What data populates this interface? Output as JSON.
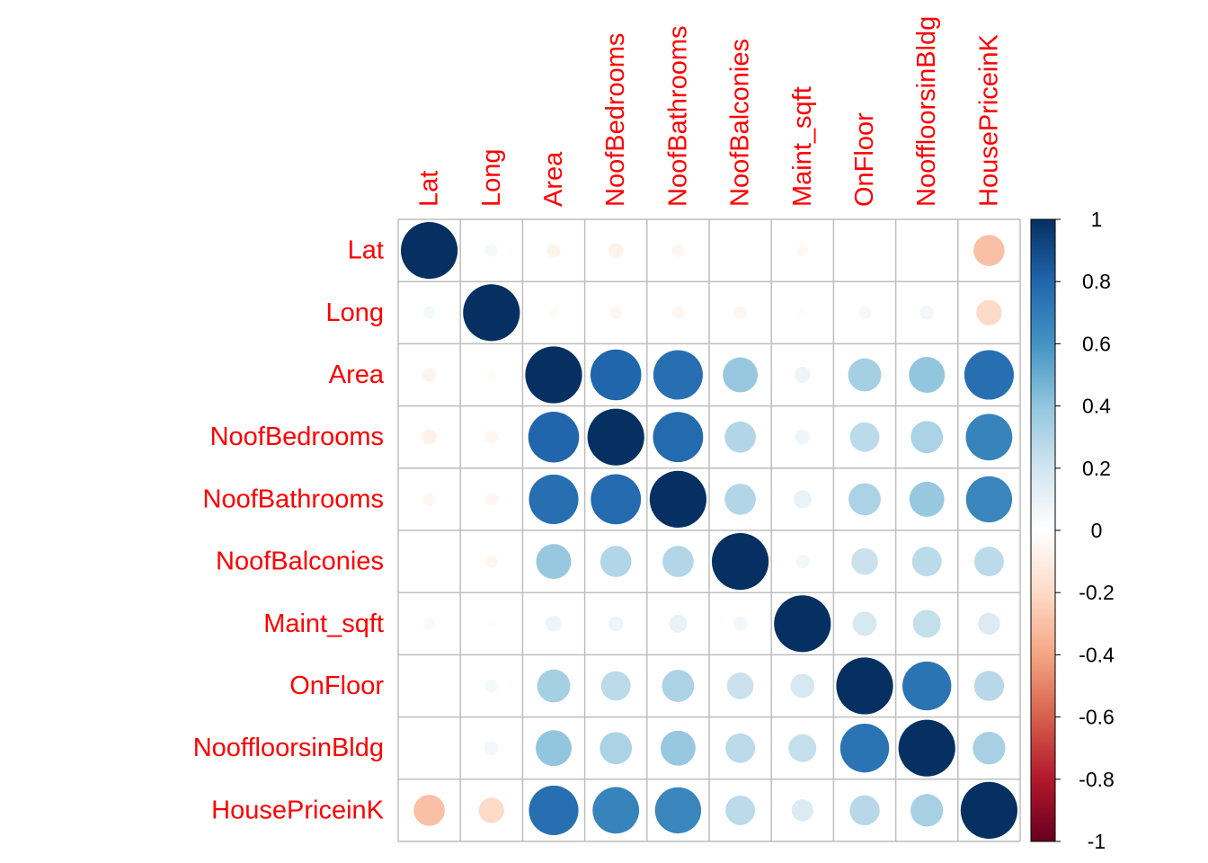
{
  "chart_data": {
    "type": "heatmap",
    "variables": [
      "Lat",
      "Long",
      "Area",
      "NoofBedrooms",
      "NoofBathrooms",
      "NoofBalconies",
      "Maint_sqft",
      "OnFloor",
      "NooffloorsinBldg",
      "HousePriceinK"
    ],
    "matrix": [
      [
        1,
        0.05,
        -0.06,
        -0.07,
        -0.05,
        0,
        -0.04,
        0,
        0,
        -0.3
      ],
      [
        0.05,
        1,
        -0.03,
        -0.05,
        -0.05,
        -0.05,
        -0.02,
        0.05,
        0.06,
        -0.2
      ],
      [
        -0.06,
        -0.03,
        1,
        0.8,
        0.76,
        0.38,
        0.08,
        0.34,
        0.4,
        0.76
      ],
      [
        -0.07,
        -0.05,
        0.8,
        1,
        0.78,
        0.3,
        0.07,
        0.27,
        0.32,
        0.67
      ],
      [
        -0.05,
        -0.05,
        0.76,
        0.78,
        1,
        0.3,
        0.1,
        0.32,
        0.38,
        0.66
      ],
      [
        0,
        -0.05,
        0.38,
        0.3,
        0.3,
        1,
        0.06,
        0.22,
        0.27,
        0.27
      ],
      [
        -0.04,
        -0.02,
        0.08,
        0.07,
        0.1,
        0.06,
        1,
        0.18,
        0.24,
        0.15
      ],
      [
        0,
        0.05,
        0.34,
        0.27,
        0.32,
        0.22,
        0.18,
        1,
        0.74,
        0.28
      ],
      [
        0,
        0.06,
        0.4,
        0.32,
        0.38,
        0.27,
        0.24,
        0.74,
        1,
        0.33
      ],
      [
        -0.3,
        -0.2,
        0.76,
        0.67,
        0.66,
        0.27,
        0.15,
        0.28,
        0.33,
        1
      ]
    ],
    "colorbar": {
      "range": [
        -1,
        1
      ],
      "ticks": [
        "1",
        "0.8",
        "0.6",
        "0.4",
        "0.2",
        "0",
        "-0.2",
        "-0.4",
        "-0.6",
        "-0.8",
        "-1"
      ]
    },
    "colors": {
      "label": "#ff0000",
      "grid": "#bebebe",
      "scale": [
        "#67001f",
        "#b2182b",
        "#d6604d",
        "#f4a582",
        "#fddbc7",
        "#ffffff",
        "#d1e5f0",
        "#92c5de",
        "#4393c3",
        "#2166ac",
        "#053061"
      ]
    }
  }
}
